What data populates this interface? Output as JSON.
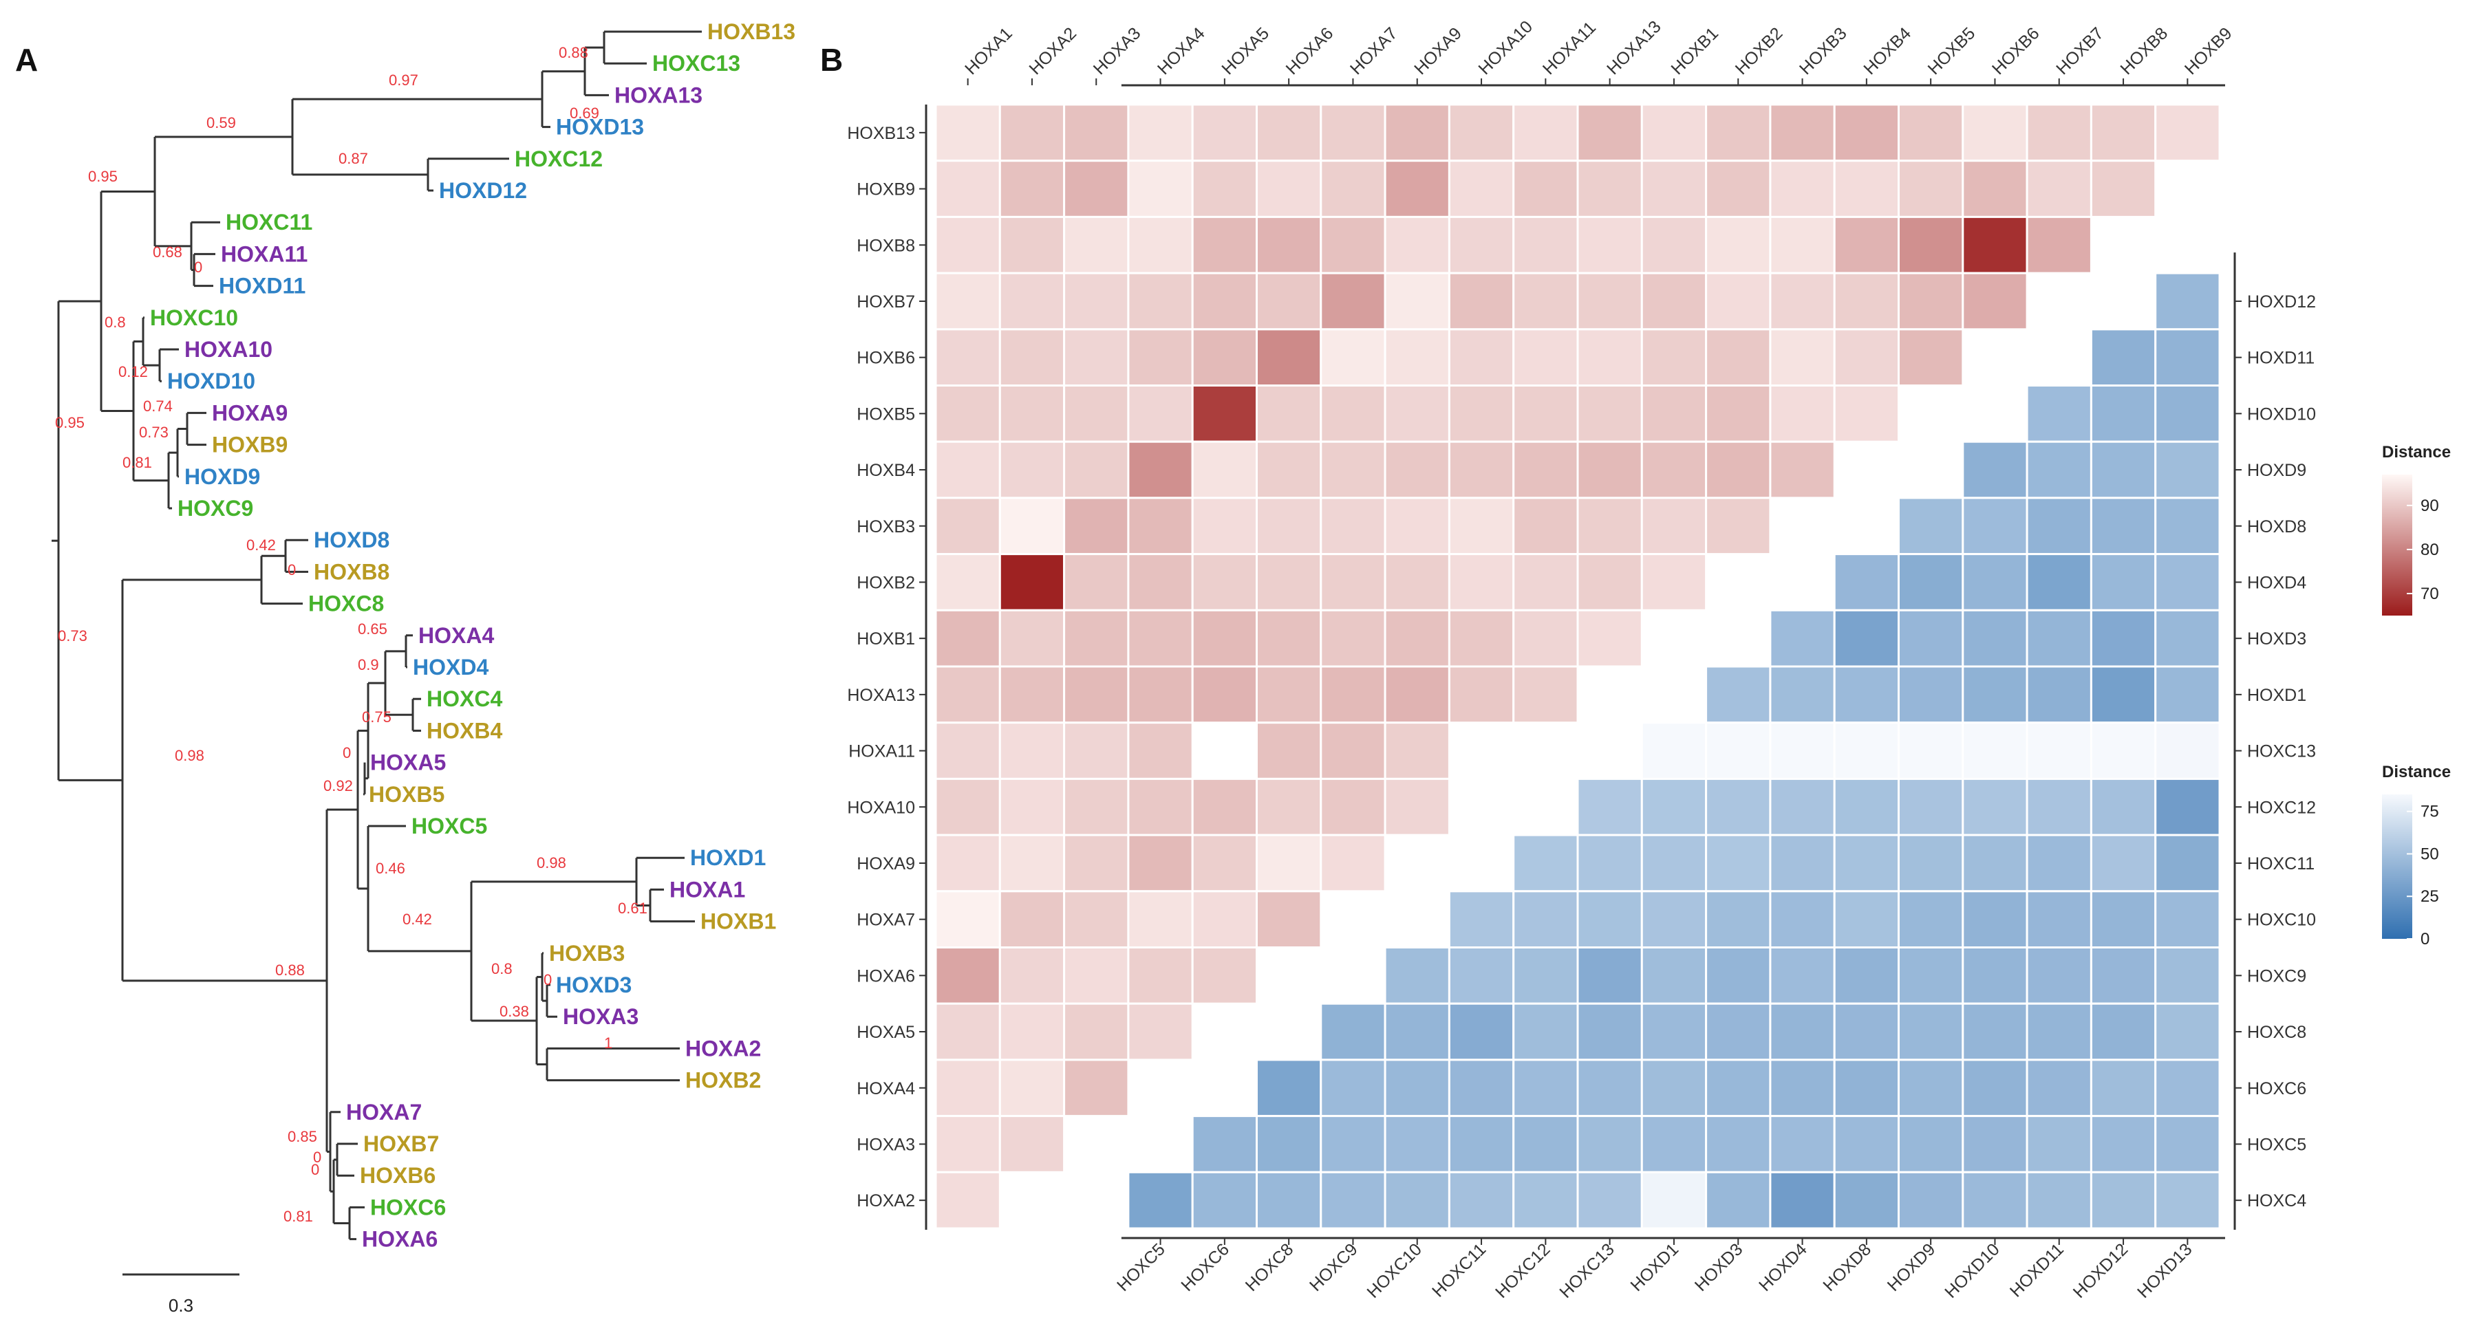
{
  "panels": {
    "a": "A",
    "b": "B"
  },
  "colors": {
    "HOXA": "#7b2fa6",
    "HOXB": "#b89a22",
    "HOXC": "#46b32c",
    "HOXD": "#2f82c6",
    "support": "#e8383d",
    "red_low": "#9b1b1b",
    "red_high": "#fff8f6",
    "blue_low": "#2f6fb0",
    "blue_high": "#f6f9fd"
  },
  "chart_data": [
    {
      "type": "tree",
      "panel": "A",
      "scale_label": "0.3",
      "scale_value": 0.3,
      "leaves": [
        "HOXB13",
        "HOXC13",
        "HOXA13",
        "HOXD13",
        "HOXC12",
        "HOXD12",
        "HOXC11",
        "HOXA11",
        "HOXD11",
        "HOXC10",
        "HOXA10",
        "HOXD10",
        "HOXA9",
        "HOXB9",
        "HOXD9",
        "HOXC9",
        "HOXD8",
        "HOXB8",
        "HOXC8",
        "HOXA4",
        "HOXD4",
        "HOXC4",
        "HOXB4",
        "HOXA5",
        "HOXB5",
        "HOXC5",
        "HOXD1",
        "HOXA1",
        "HOXB1",
        "HOXB3",
        "HOXD3",
        "HOXA3",
        "HOXA2",
        "HOXB2",
        "HOXA7",
        "HOXB7",
        "HOXB6",
        "HOXC6",
        "HOXA6"
      ],
      "support_values": [
        "0.69",
        "0.88",
        "0.97",
        "0.59",
        "0.87",
        "0.95",
        "0.68",
        "0",
        "0.8",
        "0.12",
        "0.74",
        "0.73",
        "0.81",
        "0.95",
        "0.42",
        "0",
        "0.65",
        "0.9",
        "0.75",
        "0",
        "0.92",
        "0.46",
        "0.98",
        "0.61",
        "0.42",
        "0.8",
        "0",
        "0.38",
        "1",
        "0.73",
        "0.98",
        "0.88",
        "0",
        "0.85",
        "0",
        "0.81"
      ]
    },
    {
      "type": "heatmap",
      "panel": "B",
      "title_upper": "Distance",
      "title_lower": "Distance",
      "top_columns": [
        "HOXA1",
        "HOXA2",
        "HOXA3",
        "HOXA4",
        "HOXA5",
        "HOXA6",
        "HOXA7",
        "HOXA9",
        "HOXA10",
        "HOXA11",
        "HOXA13",
        "HOXB1",
        "HOXB2",
        "HOXB3",
        "HOXB4",
        "HOXB5",
        "HOXB6",
        "HOXB7",
        "HOXB8",
        "HOXB9"
      ],
      "left_rows": [
        "HOXB13",
        "HOXB9",
        "HOXB8",
        "HOXB7",
        "HOXB6",
        "HOXB5",
        "HOXB4",
        "HOXB3",
        "HOXB2",
        "HOXB1",
        "HOXA13",
        "HOXA11",
        "HOXA10",
        "HOXA9",
        "HOXA7",
        "HOXA6",
        "HOXA5",
        "HOXA4",
        "HOXA3",
        "HOXA2"
      ],
      "right_rows": [
        "HOXD12",
        "HOXD11",
        "HOXD10",
        "HOXD9",
        "HOXD8",
        "HOXD4",
        "HOXD3",
        "HOXD1",
        "HOXC13",
        "HOXC12",
        "HOXC11",
        "HOXC10",
        "HOXC9",
        "HOXC8",
        "HOXC6",
        "HOXC5",
        "HOXC4"
      ],
      "bottom_columns": [
        "HOXC5",
        "HOXC6",
        "HOXC8",
        "HOXC9",
        "HOXC10",
        "HOXC11",
        "HOXC12",
        "HOXC13",
        "HOXD1",
        "HOXD3",
        "HOXD4",
        "HOXD8",
        "HOXD9",
        "HOXD10",
        "HOXD11",
        "HOXD12",
        "HOXD13"
      ],
      "scale_upper": {
        "ticks": [
          90,
          80,
          70
        ],
        "range": [
          65,
          97
        ]
      },
      "scale_lower": {
        "ticks": [
          75,
          50,
          25,
          0
        ],
        "range": [
          0,
          85
        ]
      },
      "upper_values": [
        [
          94,
          90,
          89,
          94,
          92,
          91,
          91,
          88,
          91,
          93,
          88,
          93,
          90,
          88,
          87,
          90,
          94,
          91,
          91,
          93
        ],
        [
          93,
          89,
          87,
          95,
          91,
          93,
          91,
          85,
          93,
          90,
          91,
          92,
          90,
          93,
          93,
          91,
          88,
          92,
          91
        ],
        [
          93,
          91,
          94,
          94,
          88,
          87,
          89,
          93,
          92,
          92,
          93,
          92,
          94,
          94,
          87,
          82,
          68,
          86
        ],
        [
          94,
          92,
          92,
          91,
          89,
          90,
          84,
          95,
          89,
          91,
          91,
          90,
          93,
          92,
          91,
          88,
          86
        ],
        [
          92,
          91,
          92,
          90,
          88,
          81,
          95,
          94,
          92,
          93,
          93,
          91,
          90,
          94,
          92,
          88
        ],
        [
          91,
          91,
          91,
          92,
          70,
          91,
          91,
          92,
          91,
          91,
          91,
          90,
          89,
          93,
          93
        ],
        [
          93,
          92,
          91,
          82,
          94,
          91,
          91,
          90,
          90,
          89,
          88,
          89,
          88,
          89
        ],
        [
          91,
          96,
          87,
          88,
          93,
          92,
          92,
          93,
          94,
          90,
          91,
          92,
          91
        ],
        [
          94,
          66,
          90,
          89,
          91,
          91,
          91,
          91,
          93,
          92,
          91,
          93
        ],
        [
          88,
          91,
          89,
          89,
          88,
          89,
          90,
          89,
          90,
          92,
          93
        ],
        [
          90,
          89,
          88,
          88,
          87,
          89,
          88,
          87,
          90,
          91
        ],
        [
          92,
          93,
          92,
          90,
          null,
          89,
          89,
          91
        ],
        [
          91,
          93,
          91,
          90,
          89,
          91,
          90,
          92
        ],
        [
          93,
          94,
          91,
          88,
          91,
          95,
          93
        ],
        [
          96,
          90,
          91,
          94,
          93,
          89
        ],
        [
          85,
          92,
          93,
          91,
          91
        ],
        [
          92,
          93,
          91,
          92
        ],
        [
          93,
          94,
          89
        ],
        [
          93,
          92
        ],
        [
          93
        ]
      ],
      "lower_values": [
        [
          45
        ],
        [
          40,
          42
        ],
        [
          47,
          43,
          42
        ],
        [
          40,
          45,
          45,
          48
        ],
        [
          48,
          47,
          42,
          43,
          45
        ],
        [
          44,
          38,
          43,
          33,
          45,
          47
        ],
        [
          47,
          32,
          44,
          42,
          43,
          36,
          45
        ],
        [
          50,
          48,
          46,
          44,
          41,
          40,
          30,
          45
        ],
        [
          85,
          85,
          85,
          85,
          85,
          85,
          85,
          85,
          84
        ],
        [
          55,
          54,
          53,
          52,
          51,
          52,
          53,
          52,
          50,
          28
        ],
        [
          54,
          53,
          53,
          54,
          50,
          51,
          49,
          48,
          46,
          52,
          38
        ],
        [
          53,
          52,
          51,
          52,
          48,
          47,
          51,
          45,
          42,
          44,
          43,
          46
        ],
        [
          48,
          50,
          49,
          37,
          48,
          43,
          47,
          42,
          45,
          43,
          44,
          44,
          48
        ],
        [
          41,
          43,
          37,
          48,
          42,
          46,
          44,
          43,
          44,
          45,
          43,
          43,
          42,
          49
        ],
        [
          33,
          46,
          45,
          44,
          47,
          46,
          48,
          45,
          43,
          42,
          45,
          42,
          44,
          48,
          47
        ],
        [
          43,
          41,
          46,
          47,
          45,
          45,
          48,
          47,
          46,
          47,
          46,
          45,
          44,
          48,
          46,
          46
        ],
        [
          33,
          45,
          45,
          47,
          48,
          50,
          51,
          52,
          82,
          45,
          28,
          38,
          44,
          46,
          48,
          49,
          51
        ]
      ]
    }
  ]
}
